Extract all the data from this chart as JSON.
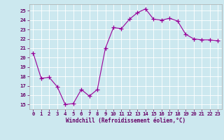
{
  "x": [
    0,
    1,
    2,
    3,
    4,
    5,
    6,
    7,
    8,
    9,
    10,
    11,
    12,
    13,
    14,
    15,
    16,
    17,
    18,
    19,
    20,
    21,
    22,
    23
  ],
  "y": [
    20.5,
    17.8,
    17.9,
    16.9,
    15.0,
    15.1,
    16.6,
    15.9,
    16.6,
    21.0,
    23.2,
    23.1,
    24.1,
    24.8,
    25.2,
    24.1,
    24.0,
    24.2,
    23.9,
    22.5,
    22.0,
    21.9,
    21.9,
    21.8
  ],
  "line_color": "#990099",
  "marker": "+",
  "marker_size": 4,
  "bg_color": "#cce8ef",
  "grid_color": "#ffffff",
  "xlabel": "Windchill (Refroidissement éolien,°C)",
  "xlabel_color": "#660066",
  "tick_color": "#660066",
  "ylim": [
    14.5,
    25.7
  ],
  "xlim": [
    -0.5,
    23.5
  ],
  "yticks": [
    15,
    16,
    17,
    18,
    19,
    20,
    21,
    22,
    23,
    24,
    25
  ],
  "xticks": [
    0,
    1,
    2,
    3,
    4,
    5,
    6,
    7,
    8,
    9,
    10,
    11,
    12,
    13,
    14,
    15,
    16,
    17,
    18,
    19,
    20,
    21,
    22,
    23
  ],
  "tick_fontsize": 5.2,
  "xlabel_fontsize": 5.5
}
